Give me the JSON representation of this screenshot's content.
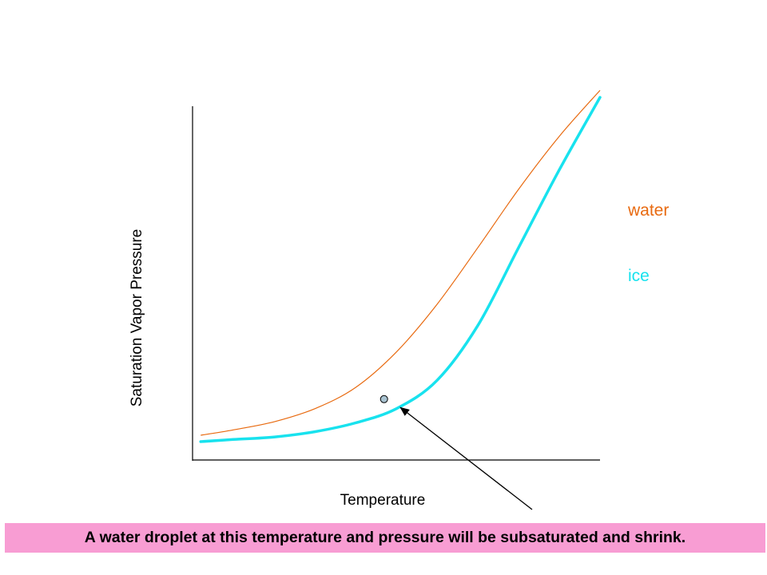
{
  "chart_data": {
    "type": "line",
    "title": "",
    "xlabel": "Temperature",
    "ylabel": "Saturation Vapor Pressure",
    "xlim": [
      0,
      100
    ],
    "ylim": [
      0,
      100
    ],
    "grid": false,
    "legend_placement": "right",
    "series": [
      {
        "name": "water",
        "color": "#e86a10",
        "x": [
          2,
          10,
          20,
          30,
          40,
          50,
          60,
          70,
          80,
          90,
          100
        ],
        "y": [
          7,
          8.5,
          10.8,
          14.5,
          20.5,
          30.5,
          44,
          60,
          76.5,
          91.5,
          104.5
        ]
      },
      {
        "name": "ice",
        "color": "#18e2ee",
        "x": [
          2,
          10,
          20,
          30,
          40,
          50,
          60,
          70,
          80,
          90,
          100
        ],
        "y": [
          5.2,
          5.8,
          6.5,
          8.0,
          10.5,
          14.5,
          22.5,
          38,
          60,
          82,
          102.5
        ]
      }
    ],
    "annotations": [
      {
        "type": "point",
        "x": 47,
        "y": 17.2,
        "fill": "#a9c3d1",
        "text": "A water droplet at this temperature and pressure will be subsaturated and shrink."
      }
    ]
  },
  "legend": [
    {
      "label": "water",
      "color": "#e86a10"
    },
    {
      "label": "ice",
      "color": "#18e2ee"
    }
  ],
  "caption": {
    "text": "A water droplet at this temperature and pressure will be subsaturated and shrink.",
    "background": "#f89dd3"
  }
}
